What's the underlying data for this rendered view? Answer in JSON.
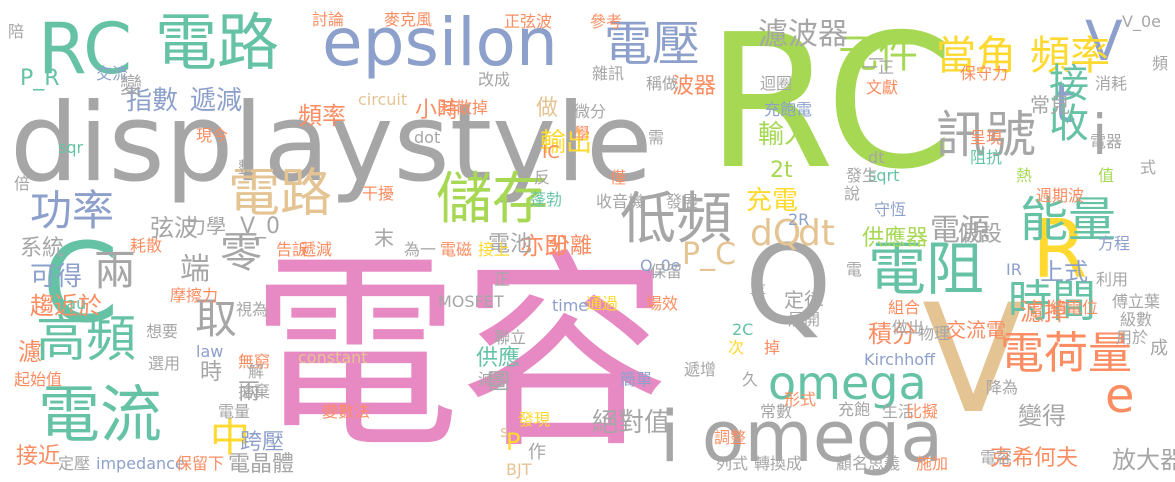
{
  "palette": {
    "gray": "#a6a6a6",
    "green": "#a6d854",
    "pink": "#e78ac3",
    "slate": "#8da0cb",
    "teal": "#66c2a5",
    "orange": "#fc8d62",
    "yellow": "#ffd92f",
    "tan": "#e5c494"
  },
  "words": [
    {
      "text": "電容",
      "color": "pink"
    },
    {
      "text": "RC",
      "color": "green"
    },
    {
      "text": "displaystyle",
      "color": "gray"
    },
    {
      "text": "epsilon",
      "color": "slate"
    },
    {
      "text": "電路",
      "color": "teal"
    },
    {
      "text": "電路",
      "color": "tan"
    },
    {
      "text": "RC",
      "color": "teal"
    },
    {
      "text": "C",
      "color": "teal"
    },
    {
      "text": "電流",
      "color": "teal"
    },
    {
      "text": "高頻",
      "color": "teal"
    },
    {
      "text": "兩",
      "color": "gray"
    },
    {
      "text": "零",
      "color": "gray"
    },
    {
      "text": "取",
      "color": "gray"
    },
    {
      "text": "端",
      "color": "gray"
    },
    {
      "text": "Q",
      "color": "gray"
    },
    {
      "text": "V",
      "color": "tan"
    },
    {
      "text": "R",
      "color": "yellow"
    },
    {
      "text": "e",
      "color": "orange"
    },
    {
      "text": "V",
      "color": "slate"
    },
    {
      "text": "t",
      "color": "slate"
    },
    {
      "text": "i",
      "color": "gray"
    },
    {
      "text": "i omega",
      "color": "gray"
    },
    {
      "text": "omega",
      "color": "teal"
    },
    {
      "text": "電阻",
      "color": "teal"
    },
    {
      "text": "電荷量",
      "color": "orange"
    },
    {
      "text": "時間",
      "color": "teal"
    },
    {
      "text": "能量",
      "color": "teal"
    },
    {
      "text": "訊號",
      "color": "gray"
    },
    {
      "text": "電壓",
      "color": "slate"
    },
    {
      "text": "儲存",
      "color": "green"
    },
    {
      "text": "低頻",
      "color": "gray"
    },
    {
      "text": "元件",
      "color": "green"
    },
    {
      "text": "當角",
      "color": "yellow"
    },
    {
      "text": "頻率",
      "color": "yellow"
    },
    {
      "text": "接收",
      "color": "teal"
    },
    {
      "text": "濾波器",
      "color": "gray"
    },
    {
      "text": "功率",
      "color": "slate"
    },
    {
      "text": "指數",
      "color": "slate"
    },
    {
      "text": "遞減",
      "color": "slate"
    },
    {
      "text": "中",
      "color": "yellow"
    },
    {
      "text": "dQ",
      "color": "tan"
    },
    {
      "text": "dt",
      "color": "tan"
    },
    {
      "text": "電源",
      "color": "gray"
    },
    {
      "text": "充電",
      "color": "yellow"
    },
    {
      "text": "輸出",
      "color": "yellow"
    },
    {
      "text": "輸入",
      "color": "green"
    },
    {
      "text": "頻率",
      "color": "orange"
    },
    {
      "text": "小時",
      "color": "orange"
    },
    {
      "text": "波器",
      "color": "orange"
    },
    {
      "text": "做",
      "color": "tan"
    },
    {
      "text": "2t",
      "color": "green"
    },
    {
      "text": "供應器",
      "color": "green"
    },
    {
      "text": "假設",
      "color": "gray"
    },
    {
      "text": "上式",
      "color": "slate"
    },
    {
      "text": "濾掉",
      "color": "orange"
    },
    {
      "text": "可得",
      "color": "slate"
    },
    {
      "text": "系統",
      "color": "gray"
    },
    {
      "text": "趨近於",
      "color": "orange"
    },
    {
      "text": "濾",
      "color": "orange"
    },
    {
      "text": "弦波",
      "color": "gray"
    },
    {
      "text": "力學",
      "color": "gray"
    },
    {
      "text": "V_0",
      "color": "gray"
    },
    {
      "text": "末",
      "color": "gray"
    },
    {
      "text": "亦即",
      "color": "orange"
    },
    {
      "text": "電池",
      "color": "gray"
    },
    {
      "text": "分離",
      "color": "orange"
    },
    {
      "text": "P_C",
      "color": "tan"
    },
    {
      "text": "積分",
      "color": "orange"
    },
    {
      "text": "供應",
      "color": "teal"
    },
    {
      "text": "時",
      "color": "gray"
    },
    {
      "text": "兩",
      "color": "gray"
    },
    {
      "text": "圖",
      "color": "gray"
    },
    {
      "text": "絕對值",
      "color": "gray"
    },
    {
      "text": "變得",
      "color": "gray"
    },
    {
      "text": "放大器",
      "color": "gray"
    },
    {
      "text": "克希何夫",
      "color": "orange"
    },
    {
      "text": "跨壓",
      "color": "slate"
    },
    {
      "text": "電晶體",
      "color": "gray"
    },
    {
      "text": "接近",
      "color": "orange"
    },
    {
      "text": "P",
      "color": "yellow"
    },
    {
      "text": "作",
      "color": "gray"
    },
    {
      "text": "定律",
      "color": "gray"
    },
    {
      "text": "常見",
      "color": "gray"
    },
    {
      "text": "交流電",
      "color": "orange"
    },
    {
      "text": "成",
      "color": "gray"
    },
    {
      "text": "V_0e",
      "color": "gray"
    },
    {
      "text": "頻",
      "color": "gray"
    },
    {
      "text": "P_R",
      "color": "teal"
    },
    {
      "text": "sqr",
      "color": "teal"
    },
    {
      "text": "circuit",
      "color": "tan"
    },
    {
      "text": "dot",
      "color": "gray"
    },
    {
      "text": "IC",
      "color": "orange"
    },
    {
      "text": "MOSFET",
      "color": "gray"
    },
    {
      "text": "impedance",
      "color": "slate"
    },
    {
      "text": "Kirchhoff",
      "color": "slate"
    },
    {
      "text": "constant",
      "color": "tan"
    },
    {
      "text": "time",
      "color": "slate"
    },
    {
      "text": "law",
      "color": "slate"
    },
    {
      "text": "tau",
      "color": "teal"
    },
    {
      "text": "BJT",
      "color": "tan"
    },
    {
      "text": "IR",
      "color": "slate"
    },
    {
      "text": "2C",
      "color": "teal"
    },
    {
      "text": "2R",
      "color": "slate"
    },
    {
      "text": "Q_0e",
      "color": "slate"
    },
    {
      "text": "dt",
      "color": "gray"
    },
    {
      "text": "sqrt",
      "color": "teal"
    },
    {
      "text": "s",
      "color": "tan"
    },
    {
      "text": "討論",
      "color": "orange"
    },
    {
      "text": "麥克風",
      "color": "orange"
    },
    {
      "text": "正弦波",
      "color": "orange"
    },
    {
      "text": "參考",
      "color": "orange"
    },
    {
      "text": "交流",
      "color": "slate"
    },
    {
      "text": "變",
      "color": "gray"
    },
    {
      "text": "改成",
      "color": "gray"
    },
    {
      "text": "雜訊",
      "color": "gray"
    },
    {
      "text": "耗散掉",
      "color": "orange"
    },
    {
      "text": "稱做",
      "color": "gray"
    },
    {
      "text": "迴圈",
      "color": "gray"
    },
    {
      "text": "一正",
      "color": "gray"
    },
    {
      "text": "文獻",
      "color": "orange"
    },
    {
      "text": "保守力",
      "color": "orange"
    },
    {
      "text": "消耗",
      "color": "gray"
    },
    {
      "text": "現今",
      "color": "orange"
    },
    {
      "text": "學",
      "color": "orange"
    },
    {
      "text": "微分",
      "color": "gray"
    },
    {
      "text": "需",
      "color": "gray"
    },
    {
      "text": "充飽電",
      "color": "slate"
    },
    {
      "text": "呈現",
      "color": "orange"
    },
    {
      "text": "阻抗",
      "color": "teal"
    },
    {
      "text": "電器",
      "color": "gray"
    },
    {
      "text": "整",
      "color": "gray"
    },
    {
      "text": "反",
      "color": "gray"
    },
    {
      "text": "僅",
      "color": "orange"
    },
    {
      "text": "發生",
      "color": "gray"
    },
    {
      "text": "說",
      "color": "gray"
    },
    {
      "text": "熱",
      "color": "green"
    },
    {
      "text": "值",
      "color": "green"
    },
    {
      "text": "干擾",
      "color": "orange"
    },
    {
      "text": "蓬勃",
      "color": "teal"
    },
    {
      "text": "收音機",
      "color": "gray"
    },
    {
      "text": "發展",
      "color": "gray"
    },
    {
      "text": "守恆",
      "color": "slate"
    },
    {
      "text": "週期波",
      "color": "orange"
    },
    {
      "text": "耗散",
      "color": "orange"
    },
    {
      "text": "告訴",
      "color": "orange"
    },
    {
      "text": "遞減",
      "color": "orange"
    },
    {
      "text": "為一",
      "color": "gray"
    },
    {
      "text": "電磁",
      "color": "orange"
    },
    {
      "text": "接上",
      "color": "yellow"
    },
    {
      "text": "保留",
      "color": "gray"
    },
    {
      "text": "方程",
      "color": "slate"
    },
    {
      "text": "利用",
      "color": "gray"
    },
    {
      "text": "摩擦力",
      "color": "orange"
    },
    {
      "text": "視為",
      "color": "gray"
    },
    {
      "text": "通過",
      "color": "yellow"
    },
    {
      "text": "場效",
      "color": "orange"
    },
    {
      "text": "事",
      "color": "gray"
    },
    {
      "text": "組合",
      "color": "orange"
    },
    {
      "text": "總電位",
      "color": "orange"
    },
    {
      "text": "傅立葉",
      "color": "gray"
    },
    {
      "text": "級數",
      "color": "gray"
    },
    {
      "text": "用於",
      "color": "gray"
    },
    {
      "text": "想要",
      "color": "gray"
    },
    {
      "text": "聯立",
      "color": "gray"
    },
    {
      "text": "展開",
      "color": "gray"
    },
    {
      "text": "做出",
      "color": "gray"
    },
    {
      "text": "物理",
      "color": "gray"
    },
    {
      "text": "無窮",
      "color": "orange"
    },
    {
      "text": "選用",
      "color": "gray"
    },
    {
      "text": "起始值",
      "color": "orange"
    },
    {
      "text": "減少",
      "color": "gray"
    },
    {
      "text": "簡單",
      "color": "slate"
    },
    {
      "text": "遞增",
      "color": "gray"
    },
    {
      "text": "降為",
      "color": "gray"
    },
    {
      "text": "捨棄",
      "color": "gray"
    },
    {
      "text": "電量",
      "color": "gray"
    },
    {
      "text": "變數法",
      "color": "orange"
    },
    {
      "text": "發現",
      "color": "yellow"
    },
    {
      "text": "常數",
      "color": "gray"
    },
    {
      "text": "形式",
      "color": "orange"
    },
    {
      "text": "充飽",
      "color": "gray"
    },
    {
      "text": "生活",
      "color": "gray"
    },
    {
      "text": "比擬",
      "color": "orange"
    },
    {
      "text": "定壓",
      "color": "gray"
    },
    {
      "text": "保留下",
      "color": "orange"
    },
    {
      "text": "調整",
      "color": "orange"
    },
    {
      "text": "列式",
      "color": "gray"
    },
    {
      "text": "轉換成",
      "color": "gray"
    },
    {
      "text": "顧名思義",
      "color": "gray"
    },
    {
      "text": "施加",
      "color": "orange"
    },
    {
      "text": "電容",
      "color": "gray"
    },
    {
      "text": "陪",
      "color": "gray"
    },
    {
      "text": "倍",
      "color": "gray"
    },
    {
      "text": "式",
      "color": "gray"
    },
    {
      "text": "次",
      "color": "yellow"
    },
    {
      "text": "掉",
      "color": "orange"
    },
    {
      "text": "久",
      "color": "gray"
    },
    {
      "text": "正",
      "color": "gray"
    },
    {
      "text": "電",
      "color": "gray"
    },
    {
      "text": "解",
      "color": "gray"
    },
    {
      "text": "一",
      "color": "gray"
    }
  ]
}
